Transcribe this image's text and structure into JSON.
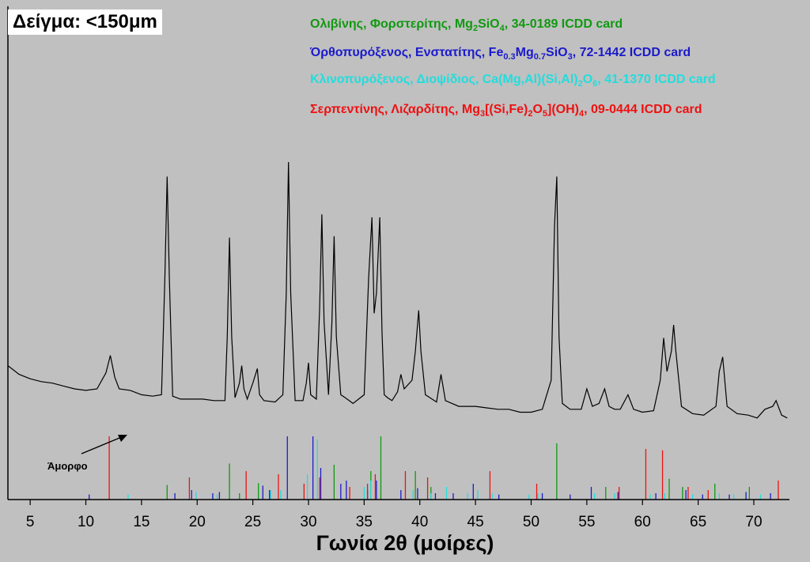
{
  "chart_data": {
    "type": "line",
    "title": "Δείγμα: <150μm",
    "xlabel": "Γωνία 2θ (μοίρες)",
    "ylabel": "",
    "xlim": [
      3,
      73.2
    ],
    "ylim": [
      0,
      100
    ],
    "x_ticks": [
      5,
      10,
      15,
      20,
      25,
      30,
      35,
      40,
      45,
      50,
      55,
      60,
      65,
      70
    ],
    "grid": false,
    "annotation": "Άμορφο",
    "pattern": {
      "name": "",
      "color": "#000000",
      "x": [
        3.0,
        4.0,
        5.0,
        6.0,
        7.0,
        8.0,
        9.0,
        10.0,
        11.0,
        11.8,
        12.2,
        12.6,
        13.0,
        14.0,
        15.0,
        16.0,
        16.8,
        17.1,
        17.3,
        17.5,
        17.8,
        18.5,
        19.5,
        20.5,
        21.5,
        22.5,
        22.7,
        22.9,
        23.1,
        23.4,
        23.8,
        24.0,
        24.2,
        24.5,
        25.0,
        25.4,
        25.6,
        26.0,
        27.0,
        27.7,
        28.0,
        28.2,
        28.4,
        28.8,
        29.5,
        29.8,
        30.0,
        30.2,
        30.7,
        31.0,
        31.2,
        31.4,
        31.8,
        32.1,
        32.3,
        32.5,
        32.9,
        33.3,
        34.0,
        35.0,
        35.4,
        35.7,
        35.9,
        36.1,
        36.4,
        36.6,
        36.8,
        37.1,
        37.5,
        38.0,
        38.3,
        38.6,
        39.3,
        39.6,
        39.9,
        40.1,
        40.5,
        41.5,
        41.9,
        42.3,
        43.5,
        45.0,
        46.0,
        47.0,
        48.0,
        49.0,
        50.0,
        51.0,
        51.8,
        52.1,
        52.3,
        52.5,
        52.8,
        53.5,
        54.5,
        55.0,
        55.5,
        56.1,
        56.6,
        57.0,
        57.5,
        58.0,
        58.7,
        59.2,
        60.0,
        61.0,
        61.6,
        61.9,
        62.2,
        62.6,
        62.8,
        63.0,
        63.5,
        64.5,
        65.5,
        66.6,
        66.9,
        67.2,
        67.6,
        68.5,
        69.5,
        70.3,
        71.0,
        71.7,
        72.0,
        72.5,
        73.0
      ],
      "y": [
        30.0,
        27.0,
        25.5,
        24.5,
        24.0,
        23.0,
        22.0,
        21.5,
        22.0,
        27.5,
        33.5,
        26.0,
        22.0,
        21.5,
        20.0,
        19.5,
        20.0,
        60.0,
        95.0,
        60.0,
        19.5,
        18.5,
        18.5,
        18.5,
        18.0,
        18.0,
        40.0,
        74.0,
        40.0,
        19.0,
        24.0,
        30.0,
        22.0,
        18.5,
        24.0,
        29.0,
        20.0,
        18.0,
        17.5,
        20.0,
        55.0,
        100.0,
        55.0,
        18.0,
        18.0,
        24.0,
        31.0,
        20.0,
        18.5,
        50.0,
        82.0,
        45.0,
        20.0,
        45.0,
        74.5,
        40.0,
        20.0,
        19.0,
        17.0,
        20.0,
        60.0,
        81.0,
        48.0,
        55.0,
        81.0,
        42.0,
        20.0,
        19.0,
        18.0,
        21.0,
        27.0,
        22.0,
        25.0,
        35.0,
        49.0,
        35.0,
        20.0,
        17.5,
        27.0,
        18.0,
        16.0,
        16.0,
        15.5,
        15.0,
        15.0,
        14.0,
        14.0,
        15.0,
        25.0,
        78.0,
        95.0,
        40.0,
        17.0,
        15.0,
        15.0,
        22.0,
        16.0,
        17.0,
        22.0,
        16.0,
        15.0,
        15.0,
        20.0,
        15.0,
        14.0,
        14.5,
        25.0,
        39.5,
        28.0,
        35.0,
        44.0,
        35.0,
        16.0,
        13.5,
        13.0,
        16.0,
        28.0,
        33.0,
        16.0,
        13.5,
        13.0,
        12.0,
        15.0,
        16.0,
        18.0,
        13.0,
        12.0
      ]
    },
    "reference_cards": [
      {
        "name": "Ολιβίνης, Φορστερίτης, Mg2SiO4, 34-0189 ICDD card",
        "color": "#119911",
        "positions": [
          17.3,
          22.9,
          23.8,
          25.5,
          32.3,
          35.6,
          36.5,
          39.6,
          41.0,
          52.3,
          56.7,
          62.4,
          63.6,
          66.5,
          69.6
        ],
        "intensities": [
          23,
          57,
          10,
          26,
          55,
          45,
          100,
          45,
          20,
          89,
          20,
          33,
          20,
          25,
          20
        ]
      },
      {
        "name": "Όρθοπυρόξενος, Ενστατίτης, Fe0.3Mg0.7SiO3, 72-1442 ICDD card",
        "color": "#1a1acc",
        "positions": [
          10.3,
          18.0,
          19.5,
          21.4,
          22.0,
          25.9,
          26.5,
          28.1,
          30.4,
          31.1,
          32.9,
          33.4,
          35.3,
          36.1,
          38.3,
          39.8,
          41.4,
          43.0,
          44.8,
          47.1,
          51.0,
          53.5,
          55.4,
          57.8,
          61.2,
          63.9,
          65.4,
          67.8,
          69.3,
          71.5
        ],
        "intensities": [
          8,
          10,
          15,
          10,
          12,
          22,
          15,
          100,
          100,
          50,
          25,
          30,
          15,
          30,
          15,
          18,
          10,
          10,
          25,
          8,
          10,
          8,
          20,
          12,
          10,
          15,
          8,
          8,
          12,
          10
        ]
      },
      {
        "name": "Κλινοπυρόξενος, Διοψίδιος, Ca(Mg,Al)(Si,Al)2O6, 41-1370 ICDD card",
        "color": "#22dddd",
        "positions": [
          13.8,
          19.9,
          21.8,
          26.6,
          27.5,
          29.9,
          30.8,
          35.0,
          35.6,
          39.4,
          41.0,
          42.4,
          44.3,
          45.2,
          46.5,
          49.8,
          50.6,
          55.7,
          57.5,
          60.7,
          62.0,
          64.5,
          66.9,
          68.2,
          70.6
        ],
        "intensities": [
          8,
          12,
          8,
          15,
          15,
          40,
          95,
          20,
          30,
          15,
          10,
          20,
          10,
          15,
          10,
          8,
          10,
          10,
          10,
          8,
          10,
          8,
          10,
          8,
          8
        ]
      },
      {
        "name": "Σερπεντίνης, Λιζαρδίτης, Mg3[(Si,Fe)2O5](OH)4, 09-0444 ICDD card",
        "color": "#ee1111",
        "positions": [
          12.1,
          19.3,
          24.4,
          27.3,
          29.6,
          31.0,
          33.7,
          35.3,
          36.0,
          38.7,
          40.7,
          46.3,
          50.5,
          57.9,
          60.3,
          61.8,
          64.1,
          65.9,
          72.2
        ],
        "intensities": [
          100,
          35,
          45,
          40,
          25,
          35,
          20,
          25,
          40,
          45,
          35,
          45,
          25,
          20,
          80,
          78,
          20,
          15,
          30
        ]
      }
    ]
  },
  "legend": [
    {
      "name": "Ολιβίνης, Φορστερίτης, Mg",
      "color": "#119911",
      "tokens": [
        {
          "t": "Ολιβίνης, Φορστερίτης, Mg"
        },
        {
          "t": "2",
          "sub": true
        },
        {
          "t": "SiO"
        },
        {
          "t": "4",
          "sub": true
        },
        {
          "t": ", 34-0189 ICDD card"
        }
      ]
    },
    {
      "name": "Όρθοπυρόξενος",
      "color": "#1a1acc",
      "tokens": [
        {
          "t": "Όρθοπυρόξενος, Ενστατίτης, Fe"
        },
        {
          "t": "0.3",
          "sub": true
        },
        {
          "t": "Mg"
        },
        {
          "t": "0.7",
          "sub": true
        },
        {
          "t": "SiO"
        },
        {
          "t": "3",
          "sub": true
        },
        {
          "t": ", 72-1442 ICDD card"
        }
      ]
    },
    {
      "name": "Κλινοπυρόξενος",
      "color": "#22dddd",
      "tokens": [
        {
          "t": "Κλινοπυρόξενος, Διοψίδιος, Ca(Mg,Al)(Si,Al)"
        },
        {
          "t": "2",
          "sub": true
        },
        {
          "t": "O"
        },
        {
          "t": "6",
          "sub": true
        },
        {
          "t": ", 41-1370 ICDD card"
        }
      ]
    },
    {
      "name": "Σερπεντίνης",
      "color": "#ee1111",
      "tokens": [
        {
          "t": "Σερπεντίνης, Λιζαρδίτης, Mg"
        },
        {
          "t": "3",
          "sub": true
        },
        {
          "t": "[(Si,Fe)"
        },
        {
          "t": "2",
          "sub": true
        },
        {
          "t": "O"
        },
        {
          "t": "5",
          "sub": true
        },
        {
          "t": "](OH)"
        },
        {
          "t": "4",
          "sub": true
        },
        {
          "t": ", 09-0444 ICDD card"
        }
      ]
    }
  ]
}
